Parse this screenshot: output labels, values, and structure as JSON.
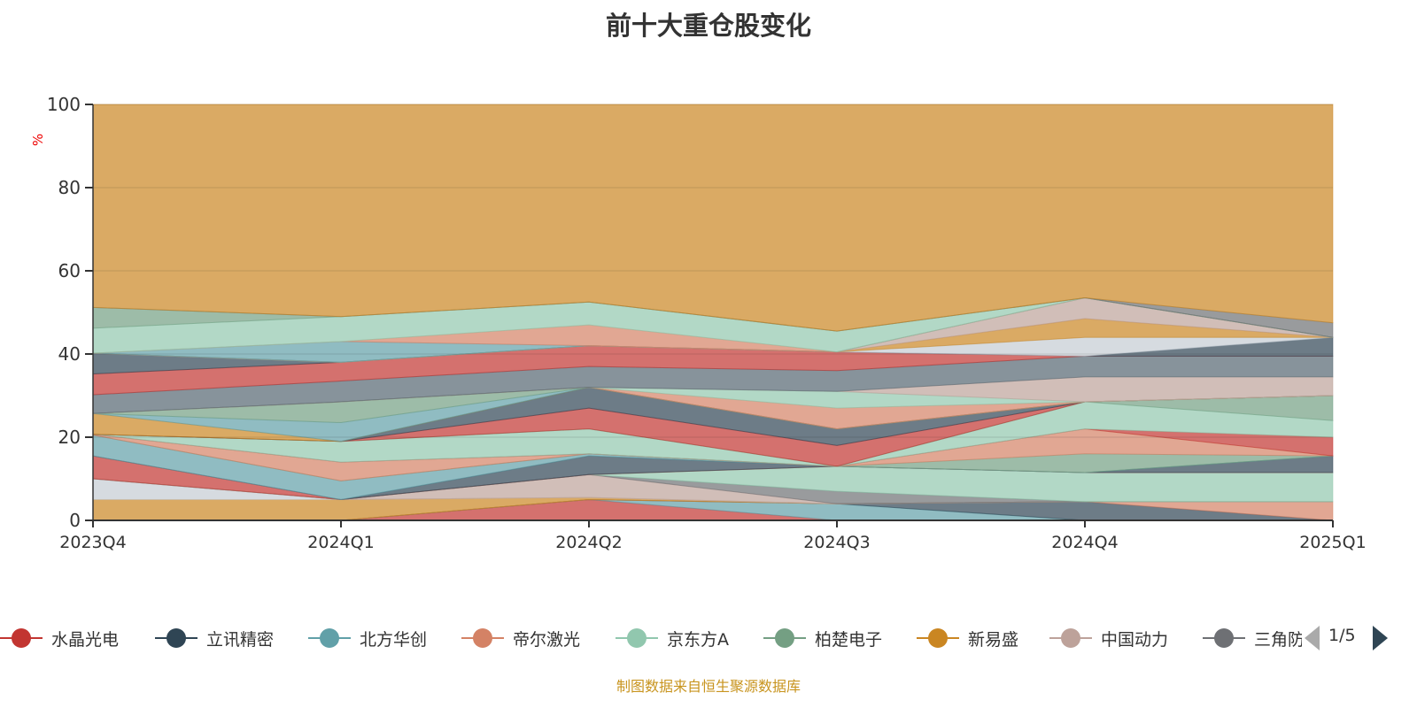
{
  "chart_data": {
    "type": "area",
    "stacked": true,
    "title": "前十大重仓股变化",
    "ylabel": "%",
    "xlabel": "",
    "ylim": [
      0,
      100
    ],
    "yticks": [
      0,
      20,
      40,
      60,
      80,
      100
    ],
    "grid": true,
    "categories": [
      "2023Q4",
      "2024Q1",
      "2024Q2",
      "2024Q3",
      "2024Q4",
      "2025Q1"
    ],
    "series": [
      {
        "color": "#c23531",
        "values": [
          0,
          0,
          5,
          0,
          0,
          0
        ]
      },
      {
        "color": "#61a0a8",
        "values": [
          0,
          0,
          0,
          4,
          0,
          0
        ]
      },
      {
        "color": "#2f4554",
        "values": [
          0,
          0,
          0,
          0,
          4.5,
          0
        ]
      },
      {
        "color": "#d48265",
        "values": [
          0,
          0,
          0,
          0,
          0,
          4.5
        ]
      },
      {
        "color": "#ca8622",
        "values": [
          5,
          5,
          0.5,
          0,
          0,
          0
        ]
      },
      {
        "color": "#c4ccd3",
        "values": [
          5,
          0,
          0,
          0,
          0,
          0
        ]
      },
      {
        "color": "#bda29a",
        "values": [
          0,
          0,
          5.5,
          0,
          0,
          0
        ]
      },
      {
        "color": "#6e7074",
        "values": [
          0,
          0,
          0,
          3,
          0,
          0
        ]
      },
      {
        "color": "#91c7ae",
        "values": [
          0,
          0,
          0,
          6,
          7,
          7
        ]
      },
      {
        "color": "#c23531",
        "values": [
          5.5,
          0,
          0,
          0,
          0,
          0
        ]
      },
      {
        "color": "#2f4554",
        "values": [
          0,
          0,
          4.5,
          0,
          0,
          4
        ]
      },
      {
        "color": "#61a0a8",
        "values": [
          5,
          4.5,
          0.5,
          0,
          0,
          0
        ]
      },
      {
        "color": "#749f83",
        "values": [
          0,
          0,
          0,
          0,
          4.5,
          0
        ]
      },
      {
        "color": "#d48265",
        "values": [
          0.2,
          4.5,
          0,
          0,
          6,
          0
        ]
      },
      {
        "color": "#c23531",
        "values": [
          0,
          0,
          0,
          0,
          0,
          4.5
        ]
      },
      {
        "color": "#91c7ae",
        "values": [
          0,
          5,
          6,
          0,
          6.5,
          4
        ]
      },
      {
        "color": "#749f83",
        "values": [
          0,
          0,
          0,
          0,
          0,
          6
        ]
      },
      {
        "color": "#c23531",
        "values": [
          0,
          0,
          5,
          5,
          0,
          0
        ]
      },
      {
        "color": "#2f4554",
        "values": [
          0,
          0,
          5,
          4,
          0,
          0
        ]
      },
      {
        "color": "#ca8622",
        "values": [
          5,
          0,
          0,
          0,
          0,
          0
        ]
      },
      {
        "color": "#61a0a8",
        "values": [
          0,
          4.5,
          0,
          0,
          0,
          0
        ]
      },
      {
        "color": "#749f83",
        "values": [
          0,
          5,
          0,
          0,
          0,
          0
        ]
      },
      {
        "color": "#d48265",
        "values": [
          0,
          0,
          0,
          5,
          0,
          0
        ]
      },
      {
        "color": "#91c7ae",
        "values": [
          0,
          0,
          0,
          4,
          0,
          0
        ]
      },
      {
        "color": "#bda29a",
        "values": [
          0,
          0,
          0,
          0,
          6,
          4.5
        ]
      },
      {
        "color": "#546570",
        "values": [
          4.5,
          5,
          5,
          5,
          5,
          5
        ]
      },
      {
        "color": "#c23531",
        "values": [
          5,
          4.5,
          5,
          4.5,
          0,
          0
        ]
      },
      {
        "color": "#2f4554",
        "values": [
          5,
          0,
          0,
          0,
          0,
          4.5
        ]
      },
      {
        "color": "#c4ccd3",
        "values": [
          0,
          0,
          0,
          0,
          4.5,
          0
        ]
      },
      {
        "color": "#ca8622",
        "values": [
          0,
          0,
          0,
          0,
          4.5,
          0
        ]
      },
      {
        "color": "#bda29a",
        "values": [
          0,
          0,
          0,
          0,
          5,
          0
        ]
      },
      {
        "color": "#61a0a8",
        "values": [
          0,
          5,
          0,
          0,
          0,
          0
        ]
      },
      {
        "color": "#d48265",
        "values": [
          0,
          0,
          5,
          0,
          0,
          0
        ]
      },
      {
        "color": "#91c7ae",
        "values": [
          6,
          6,
          5.5,
          5,
          0,
          0
        ]
      },
      {
        "color": "#749f83",
        "values": [
          5,
          0,
          0,
          0,
          0,
          0
        ]
      },
      {
        "color": "#6e7074",
        "values": [
          0,
          0,
          0,
          0,
          0,
          3.5
        ]
      },
      {
        "color": "#ca8622",
        "values": [
          48.8,
          51,
          47.5,
          54.5,
          46.5,
          52.5
        ]
      }
    ],
    "legend": [
      {
        "name": "水晶光电",
        "color": "#c23531"
      },
      {
        "name": "立讯精密",
        "color": "#2f4554"
      },
      {
        "name": "北方华创",
        "color": "#61a0a8"
      },
      {
        "name": "帝尔激光",
        "color": "#d48265"
      },
      {
        "name": "京东方A",
        "color": "#91c7ae"
      },
      {
        "name": "柏楚电子",
        "color": "#749f83"
      },
      {
        "name": "新易盛",
        "color": "#ca8622"
      },
      {
        "name": "中国动力",
        "color": "#bda29a"
      },
      {
        "name": "三角防务",
        "color": "#6e7074"
      }
    ],
    "legend_placement": "bottom",
    "legend_page": "1/5"
  },
  "footer": "制图数据来自恒生聚源数据库"
}
